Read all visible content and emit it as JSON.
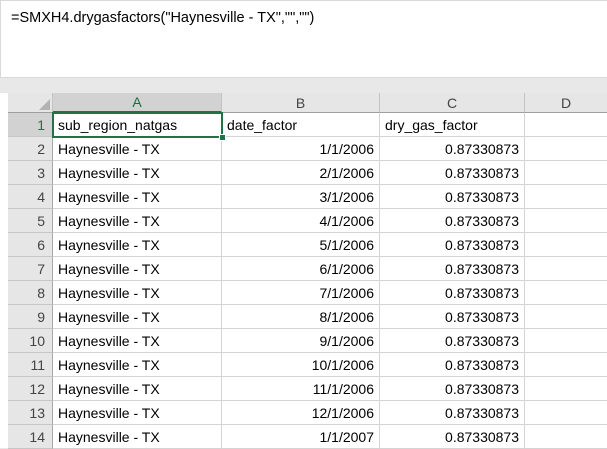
{
  "formula_bar": {
    "formula": "=SMXH4.drygasfactors(\"Haynesville - TX\",\"\",\"\")"
  },
  "grid": {
    "column_headers": [
      "A",
      "B",
      "C",
      "D"
    ],
    "selected_column": "A",
    "selected_cell": "A1",
    "rows": [
      {
        "n": "1",
        "cells": [
          "sub_region_natgas",
          "date_factor",
          "dry_gas_factor",
          ""
        ]
      },
      {
        "n": "2",
        "cells": [
          "Haynesville - TX",
          "1/1/2006",
          "0.87330873",
          ""
        ]
      },
      {
        "n": "3",
        "cells": [
          "Haynesville - TX",
          "2/1/2006",
          "0.87330873",
          ""
        ]
      },
      {
        "n": "4",
        "cells": [
          "Haynesville - TX",
          "3/1/2006",
          "0.87330873",
          ""
        ]
      },
      {
        "n": "5",
        "cells": [
          "Haynesville - TX",
          "4/1/2006",
          "0.87330873",
          ""
        ]
      },
      {
        "n": "6",
        "cells": [
          "Haynesville - TX",
          "5/1/2006",
          "0.87330873",
          ""
        ]
      },
      {
        "n": "7",
        "cells": [
          "Haynesville - TX",
          "6/1/2006",
          "0.87330873",
          ""
        ]
      },
      {
        "n": "8",
        "cells": [
          "Haynesville - TX",
          "7/1/2006",
          "0.87330873",
          ""
        ]
      },
      {
        "n": "9",
        "cells": [
          "Haynesville - TX",
          "8/1/2006",
          "0.87330873",
          ""
        ]
      },
      {
        "n": "10",
        "cells": [
          "Haynesville - TX",
          "9/1/2006",
          "0.87330873",
          ""
        ]
      },
      {
        "n": "11",
        "cells": [
          "Haynesville - TX",
          "10/1/2006",
          "0.87330873",
          ""
        ]
      },
      {
        "n": "12",
        "cells": [
          "Haynesville - TX",
          "11/1/2006",
          "0.87330873",
          ""
        ]
      },
      {
        "n": "13",
        "cells": [
          "Haynesville - TX",
          "12/1/2006",
          "0.87330873",
          ""
        ]
      },
      {
        "n": "14",
        "cells": [
          "Haynesville - TX",
          "1/1/2007",
          "0.87330873",
          ""
        ]
      }
    ]
  },
  "colors": {
    "accent_green": "#217346",
    "header_bg": "#e6e6e6",
    "selected_header_bg": "#d2d2d2",
    "gridline": "#d4d4d4"
  }
}
